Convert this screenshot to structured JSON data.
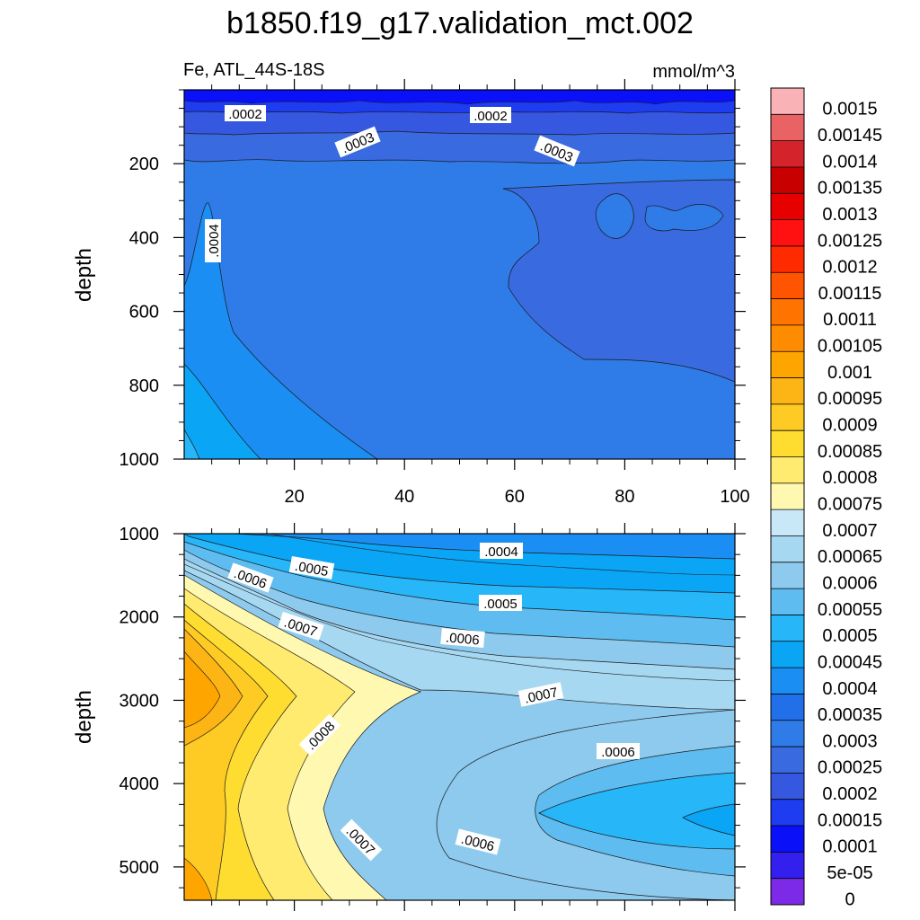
{
  "chart_data": {
    "type": "contour",
    "title": "b1850.f19_g17.validation_mct.002",
    "variable_label": "Fe, ATL_44S-18S",
    "units_label": "mmol/m^3",
    "panels": [
      {
        "name": "upper",
        "ylabel": "depth",
        "yrange": [
          0,
          1000
        ],
        "y_reversed": true,
        "y_ticks": [
          "200",
          "400",
          "600",
          "800",
          "1000"
        ],
        "xrange": [
          0,
          100
        ],
        "x_ticks": [
          "20",
          "40",
          "60",
          "80",
          "100"
        ],
        "contour_labels": [
          ".0002",
          ".0002",
          ".0003",
          ".0003",
          ".0004"
        ]
      },
      {
        "name": "lower",
        "ylabel": "depth",
        "yrange": [
          1000,
          5400
        ],
        "y_reversed": true,
        "y_ticks": [
          "1000",
          "2000",
          "3000",
          "4000",
          "5000"
        ],
        "xrange": [
          0,
          100
        ],
        "contour_labels": [
          ".0004",
          ".0005",
          ".0005",
          ".0006",
          ".0006",
          ".0007",
          ".0007",
          ".0008",
          ".0006",
          ".0006",
          ".0007"
        ]
      }
    ],
    "colorbar": {
      "labels": [
        "0.0015",
        "0.00145",
        "0.0014",
        "0.00135",
        "0.0013",
        "0.00125",
        "0.0012",
        "0.00115",
        "0.0011",
        "0.00105",
        "0.001",
        "0.00095",
        "0.0009",
        "0.00085",
        "0.0008",
        "0.00075",
        "0.0007",
        "0.00065",
        "0.0006",
        "0.00055",
        "0.0005",
        "0.00045",
        "0.0004",
        "0.00035",
        "0.0003",
        "0.00025",
        "0.0002",
        "0.00015",
        "0.0001",
        "5e-05",
        "0"
      ],
      "colors": [
        "#f9b3b6",
        "#e96364",
        "#d4232a",
        "#c90000",
        "#e60000",
        "#ff1111",
        "#ff2b00",
        "#ff5500",
        "#ff7300",
        "#ff8c00",
        "#ffa500",
        "#fdb515",
        "#fecb24",
        "#ffdd30",
        "#ffeb70",
        "#fff8b0",
        "#c8e8f8",
        "#a7d8f2",
        "#8ecaee",
        "#5ebcf1",
        "#27b6f8",
        "#0ba5f5",
        "#1a8ef3",
        "#2170ea",
        "#2f7be7",
        "#3a6ae0",
        "#3658e0",
        "#1e3cf0",
        "#0a10f8",
        "#3320ee",
        "#7d2ae8"
      ]
    }
  }
}
